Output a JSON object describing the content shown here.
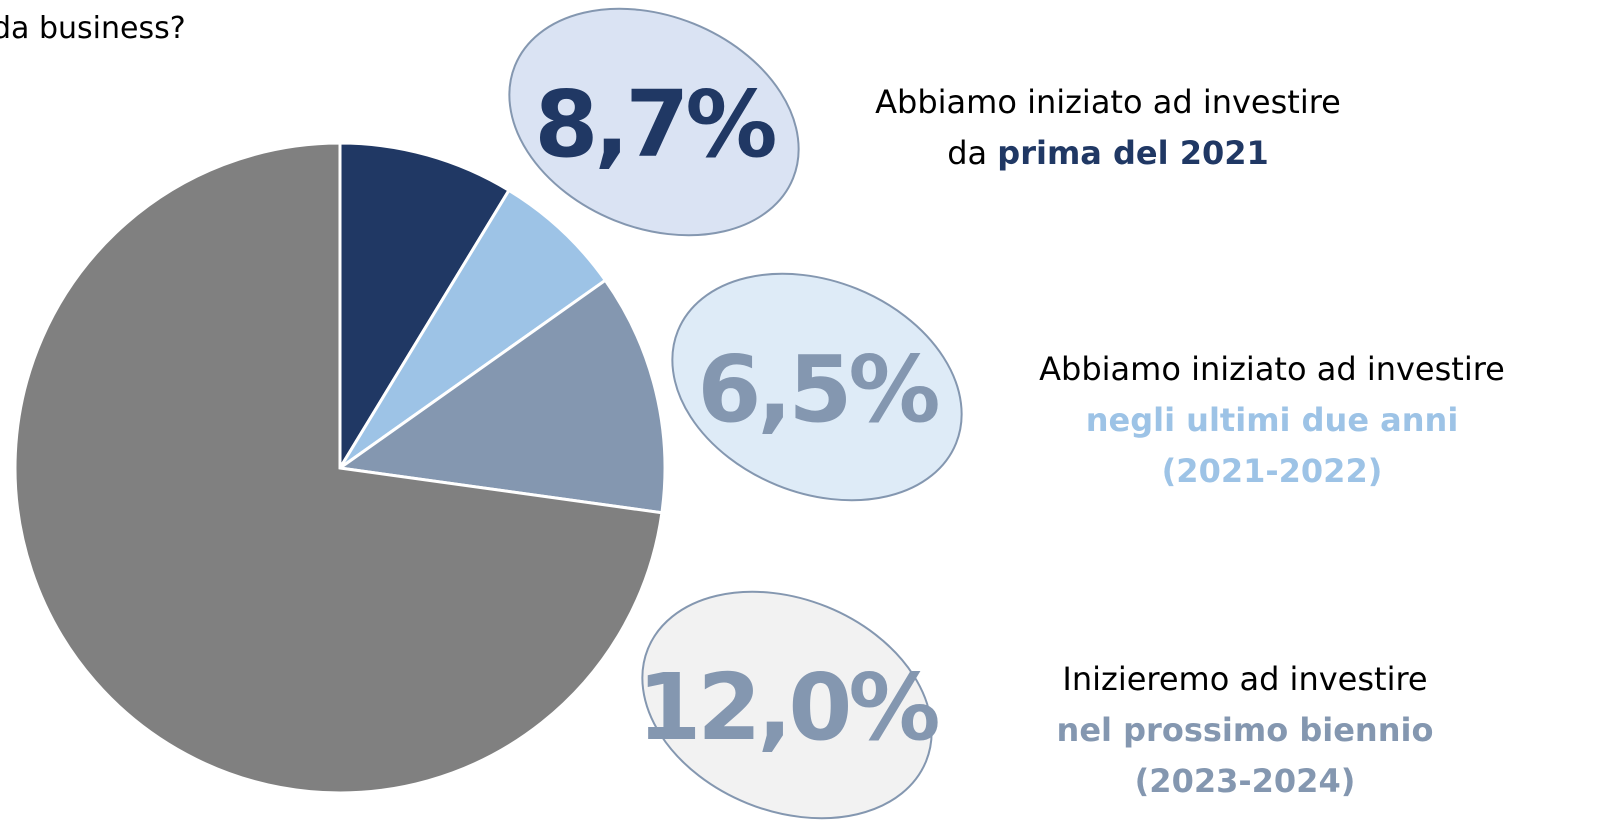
{
  "chart_data": {
    "type": "pie",
    "title": "da business?",
    "values": [
      8.7,
      6.5,
      12.0,
      72.8
    ],
    "value_labels": [
      "8,7%",
      "6,5%",
      "12,0%",
      null
    ],
    "colors": [
      "#203864",
      "#9dc3e6",
      "#8497b0",
      "#808080"
    ],
    "descriptions": [
      [
        [
          {
            "text": "Abbiamo iniziato ad investire",
            "bold": false
          }
        ],
        [
          {
            "text": "da ",
            "bold": false
          },
          {
            "text": "prima del 2021",
            "bold": true
          }
        ]
      ],
      [
        [
          {
            "text": "Abbiamo iniziato ad investire",
            "bold": false
          }
        ],
        [
          {
            "text": "negli ultimi due anni",
            "bold": true
          }
        ],
        [
          {
            "text": "(2021-2022)",
            "bold": true
          }
        ]
      ],
      [
        [
          {
            "text": "Inizieremo ad investire",
            "bold": false
          }
        ],
        [
          {
            "text": "nel prossimo biennio",
            "bold": true
          }
        ],
        [
          {
            "text": "(2023-2024)",
            "bold": true
          }
        ]
      ]
    ]
  }
}
